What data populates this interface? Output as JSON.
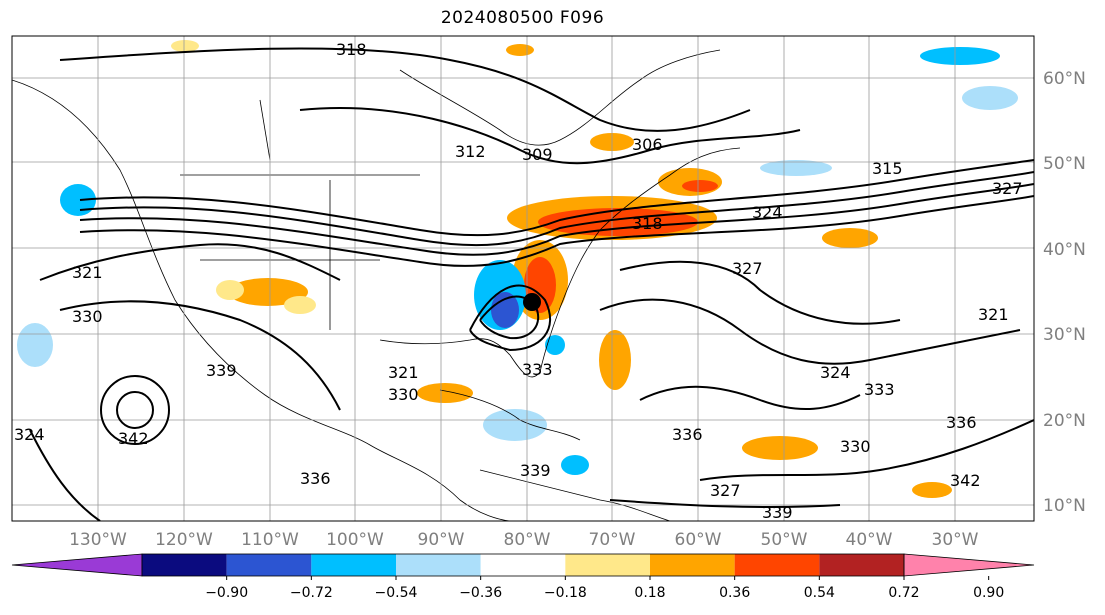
{
  "title": "2024080500 F096",
  "longitude_labels": [
    "130°W",
    "120°W",
    "110°W",
    "100°W",
    "90°W",
    "80°W",
    "70°W",
    "60°W",
    "50°W",
    "40°W",
    "30°W"
  ],
  "latitude_labels": [
    "60°N",
    "50°N",
    "40°N",
    "30°N",
    "20°N",
    "10°N"
  ],
  "contour_labels": [
    "318",
    "312",
    "309",
    "306",
    "315",
    "327",
    "324",
    "318",
    "327",
    "321",
    "330",
    "339",
    "342",
    "336",
    "339",
    "324",
    "321",
    "330",
    "333",
    "336",
    "327",
    "339",
    "333",
    "324",
    "342",
    "330",
    "336",
    "321"
  ],
  "colorbar": {
    "tick_labels": [
      "−0.90",
      "−0.72",
      "−0.54",
      "−0.36",
      "−0.18",
      "0.18",
      "0.36",
      "0.54",
      "0.72",
      "0.90"
    ],
    "colors": [
      "#9a3ad6",
      "#0b0b7f",
      "#2c55d2",
      "#00bfff",
      "#acdffa",
      "#ffffff",
      "#ffe88a",
      "#ffa500",
      "#ff4500",
      "#b22222",
      "#ff82ab"
    ]
  }
}
